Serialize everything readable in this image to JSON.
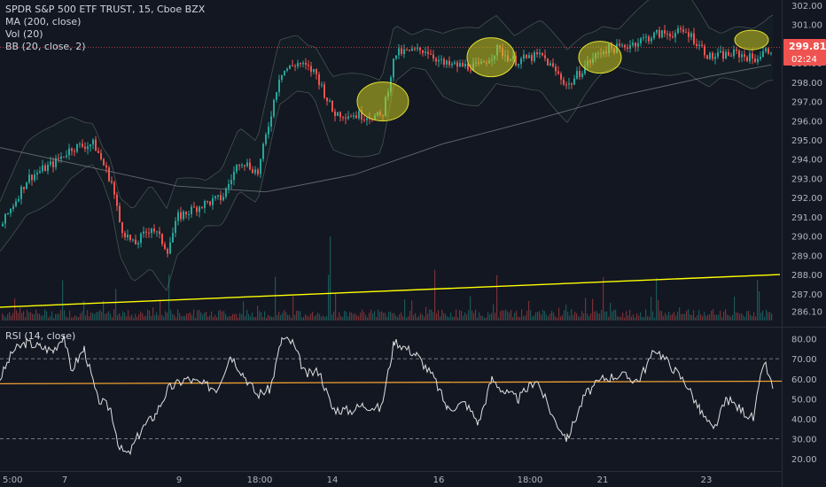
{
  "legend": {
    "title": "SPDR S&P 500 ETF TRUST, 15, Cboe BZX",
    "ma": "MA (200, close)",
    "vol": "Vol (20)",
    "bb": "BB (20, close, 2)",
    "rsi": "RSI (14, close)"
  },
  "price_badge": {
    "price": "299.81",
    "countdown": "02:24"
  },
  "colors": {
    "background": "#131722",
    "up": "#26a69a",
    "down": "#ef5350",
    "trendline": "#ffff00",
    "highlight": "#c8c81e",
    "rsi_line": "#e0e0e0",
    "rsi_level": "#f0a030",
    "bb": "#5b6b64"
  },
  "chart_data": [
    {
      "type": "candlestick",
      "title": "SPDR S&P 500 ETF TRUST, 15, Cboe BZX",
      "ylim": [
        285.7,
        302.0
      ],
      "y_ticks": [
        "302.00",
        "301.00",
        "300.00",
        "299.00",
        "298.00",
        "297.00",
        "296.00",
        "295.00",
        "294.00",
        "293.00",
        "292.00",
        "291.00",
        "290.00",
        "289.00",
        "288.00",
        "287.00",
        "286.10"
      ],
      "x_ticks": [
        "5:00",
        "7",
        "9",
        "18:00",
        "14",
        "16",
        "18:00",
        "21",
        "23"
      ],
      "last_price": 299.81,
      "series": [
        {
          "name": "MA (200, close)",
          "points": [
            [
              0,
              294.6
            ],
            [
              100,
              293.6
            ],
            [
              200,
              292.6
            ],
            [
              300,
              292.3
            ],
            [
              400,
              293.2
            ],
            [
              500,
              294.8
            ],
            [
              600,
              296.0
            ],
            [
              700,
              297.3
            ],
            [
              800,
              298.3
            ],
            [
              870,
              298.9
            ]
          ]
        },
        {
          "name": "Trend line",
          "points": [
            [
              0,
              286.3
            ],
            [
              880,
              288.0
            ]
          ]
        }
      ],
      "key_prices": [
        {
          "x": 0,
          "price": 290.5
        },
        {
          "x": 30,
          "price": 293.0
        },
        {
          "x": 60,
          "price": 293.8
        },
        {
          "x": 80,
          "price": 294.6
        },
        {
          "x": 105,
          "price": 294.8
        },
        {
          "x": 125,
          "price": 292.8
        },
        {
          "x": 135,
          "price": 290.5
        },
        {
          "x": 150,
          "price": 289.5
        },
        {
          "x": 170,
          "price": 290.5
        },
        {
          "x": 188,
          "price": 289.3
        },
        {
          "x": 200,
          "price": 291.0
        },
        {
          "x": 225,
          "price": 291.6
        },
        {
          "x": 250,
          "price": 292.0
        },
        {
          "x": 270,
          "price": 294.0
        },
        {
          "x": 290,
          "price": 293.3
        },
        {
          "x": 315,
          "price": 298.5
        },
        {
          "x": 335,
          "price": 299.0
        },
        {
          "x": 355,
          "price": 298.5
        },
        {
          "x": 375,
          "price": 296.4
        },
        {
          "x": 400,
          "price": 296.3
        },
        {
          "x": 430,
          "price": 296.2
        },
        {
          "x": 445,
          "price": 299.5
        },
        {
          "x": 480,
          "price": 299.7
        },
        {
          "x": 500,
          "price": 298.9
        },
        {
          "x": 540,
          "price": 298.8
        },
        {
          "x": 560,
          "price": 299.7
        },
        {
          "x": 580,
          "price": 299.1
        },
        {
          "x": 610,
          "price": 299.4
        },
        {
          "x": 640,
          "price": 297.8
        },
        {
          "x": 660,
          "price": 298.9
        },
        {
          "x": 680,
          "price": 299.7
        },
        {
          "x": 700,
          "price": 299.8
        },
        {
          "x": 740,
          "price": 300.5
        },
        {
          "x": 775,
          "price": 300.6
        },
        {
          "x": 800,
          "price": 299.3
        },
        {
          "x": 830,
          "price": 299.5
        },
        {
          "x": 850,
          "price": 299.2
        },
        {
          "x": 870,
          "price": 299.8
        }
      ],
      "highlights": [
        {
          "x": 432,
          "price": 297.0
        },
        {
          "x": 554,
          "price": 299.3
        },
        {
          "x": 677,
          "price": 299.3
        },
        {
          "x": 848,
          "price": 300.2
        }
      ]
    },
    {
      "type": "line",
      "title": "RSI (14, close)",
      "ylim": [
        17,
        82
      ],
      "y_ticks": [
        "80.00",
        "70.00",
        "60.00",
        "50.00",
        "40.00",
        "30.00",
        "20.00"
      ],
      "levels": [
        70,
        30
      ],
      "trend_level": {
        "name": "level",
        "from": 57.5,
        "to": 58.8
      },
      "series": [
        {
          "name": "RSI (14, close)",
          "points": [
            [
              0,
              60
            ],
            [
              15,
              74
            ],
            [
              30,
              78
            ],
            [
              45,
              76
            ],
            [
              60,
              74
            ],
            [
              72,
              82
            ],
            [
              80,
              64
            ],
            [
              95,
              75
            ],
            [
              110,
              50
            ],
            [
              125,
              45
            ],
            [
              135,
              25
            ],
            [
              145,
              22
            ],
            [
              160,
              35
            ],
            [
              175,
              42
            ],
            [
              190,
              55
            ],
            [
              210,
              60
            ],
            [
              230,
              57
            ],
            [
              245,
              55
            ],
            [
              260,
              72
            ],
            [
              275,
              62
            ],
            [
              290,
              52
            ],
            [
              305,
              55
            ],
            [
              318,
              80
            ],
            [
              330,
              78
            ],
            [
              345,
              62
            ],
            [
              360,
              64
            ],
            [
              375,
              45
            ],
            [
              395,
              44
            ],
            [
              410,
              47
            ],
            [
              430,
              45
            ],
            [
              445,
              79
            ],
            [
              470,
              72
            ],
            [
              490,
              60
            ],
            [
              505,
              45
            ],
            [
              525,
              48
            ],
            [
              540,
              38
            ],
            [
              555,
              60
            ],
            [
              570,
              53
            ],
            [
              585,
              50
            ],
            [
              605,
              60
            ],
            [
              625,
              40
            ],
            [
              640,
              30
            ],
            [
              660,
              52
            ],
            [
              680,
              60
            ],
            [
              700,
              62
            ],
            [
              720,
              59
            ],
            [
              740,
              75
            ],
            [
              760,
              65
            ],
            [
              775,
              57
            ],
            [
              790,
              44
            ],
            [
              805,
              34
            ],
            [
              820,
              50
            ],
            [
              838,
              44
            ],
            [
              850,
              40
            ],
            [
              862,
              69
            ],
            [
              872,
              55
            ]
          ]
        }
      ]
    }
  ]
}
